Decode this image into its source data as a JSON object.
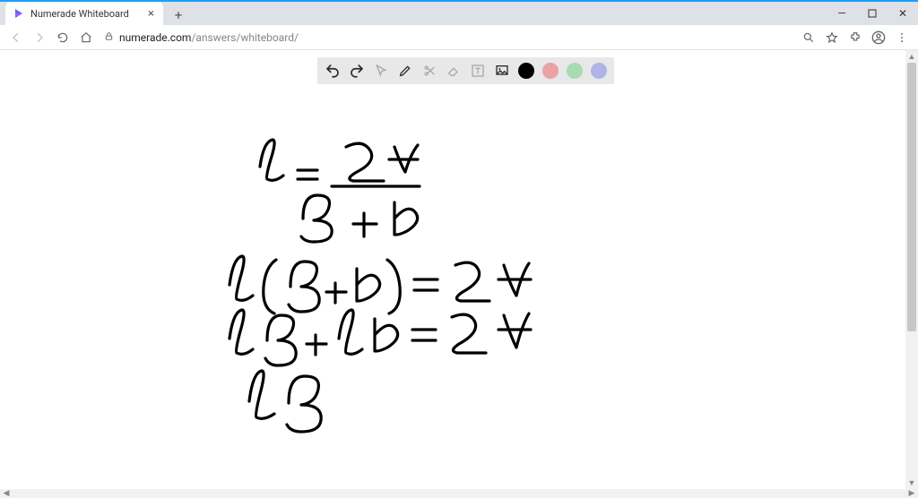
{
  "browser": {
    "accent_color": "#1a9fff",
    "tab": {
      "title": "Numerade Whiteboard",
      "favicon_colors": {
        "primary": "#4b6fff",
        "secondary": "#b055ff"
      }
    },
    "url": {
      "host": "numerade.com",
      "path": "/answers/whiteboard/"
    },
    "window_controls": {
      "minimize": "—",
      "maximize": "☐",
      "close": "✕"
    }
  },
  "toolbar": {
    "background": "#e8e8e8",
    "tools": [
      {
        "name": "undo",
        "muted": false
      },
      {
        "name": "redo",
        "muted": false
      },
      {
        "name": "pointer",
        "muted": true
      },
      {
        "name": "pen",
        "muted": false
      },
      {
        "name": "scissors",
        "muted": true
      },
      {
        "name": "eraser",
        "muted": true
      },
      {
        "name": "text",
        "muted": true
      },
      {
        "name": "image",
        "muted": false
      }
    ],
    "colors": [
      "#000000",
      "#e9a3a3",
      "#a7dcb2",
      "#b0b3e6"
    ]
  },
  "handwriting": {
    "stroke_color": "#000000",
    "stroke_width": 3.2,
    "lines_semantic": [
      "h = 2A / (B + b)",
      "h(B + b) = 2A",
      "hB + hb = 2A",
      "hB"
    ],
    "paths": [
      "M290 130 q 4 -28 14 -30 q 5 0 -2 22 q -6 20 -4 22 q 8 4 18 -4",
      "M332 134 l 22 0 M332 144 l 22 0",
      "M386 108 q 20 -10 28 6 q 4 12 -16 22 q -14 8 -4 10 l 34 0",
      "M440 108 q 8 22 12 28 M452 136 q 6 -20 14 -30 M434 122 l 32 0",
      "M370 152 l 98 0",
      "M338 188 q 0 -26 16 -26 q 18 0 12 16 q -4 10 -16 12 q 18 0 20 10 q 2 14 -20 14 q -10 0 -14 -6",
      "M406 182 l 0 26 M394 194 l 26 0",
      "M440 170 l 0 36 M440 188 q 16 -18 24 -6 q 6 10 -10 20 q -8 4 -12 4",
      "M256 262 q 4 -30 14 -32 q 5 0 -2 24 q -6 22 -4 24 q 8 4 18 -4",
      "M308 234 q -12 8 -14 30 q -2 24 12 30",
      "M324 264 q 0 -28 16 -28 q 18 0 12 16 q -4 10 -16 12 q 18 0 20 12 q 2 16 -20 16 q -10 0 -14 -8",
      "M374 260 l 0 22 M364 270 l 22 0",
      "M398 244 l 0 36 M398 262 q 16 -18 24 -6 q 6 10 -10 20 q -8 4 -12 4",
      "M432 234 q 12 8 14 30 q 2 24 -12 30",
      "M462 256 l 26 0 M462 268 l 26 0",
      "M508 240 q 20 -8 26 6 q 4 12 -18 24 q -12 8 -2 10 l 32 0",
      "M562 240 q 8 24 14 34 M576 274 q 6 -24 14 -36 M556 256 l 36 0",
      "M256 322 q 4 -30 14 -32 q 5 0 -2 24 q -6 22 -4 24 q 8 4 18 -4",
      "M298 324 q 0 -28 16 -28 q 18 0 12 16 q -4 10 -16 12 q 18 0 20 12 q 2 16 -20 16 q -10 0 -14 -8",
      "M352 318 l 0 22 M342 328 l 22 0",
      "M378 322 q 4 -30 14 -32 q 5 0 -2 24 q -6 22 -4 24 q 8 4 18 -4",
      "M418 300 l 0 36 M418 318 q 16 -18 24 -6 q 6 10 -10 20 q -8 4 -12 4",
      "M460 312 l 26 0 M460 324 l 26 0",
      "M504 298 q 20 -8 26 6 q 4 12 -18 24 q -12 8 -2 10 l 32 0",
      "M562 296 q 8 24 14 36 M576 332 q 6 -24 14 -38 M556 312 l 36 0",
      "M278 392 q 4 -32 14 -34 q 5 0 -2 26 q -6 24 -4 26 q 8 4 20 -4",
      "M322 394 q 0 -30 18 -30 q 20 0 14 18 q -4 12 -18 14 q 20 0 22 12 q 2 18 -22 18 q -12 0 -16 -8"
    ]
  },
  "scrollbar": {
    "track": "#f1f1f1",
    "thumb": "#c7c7c7"
  }
}
